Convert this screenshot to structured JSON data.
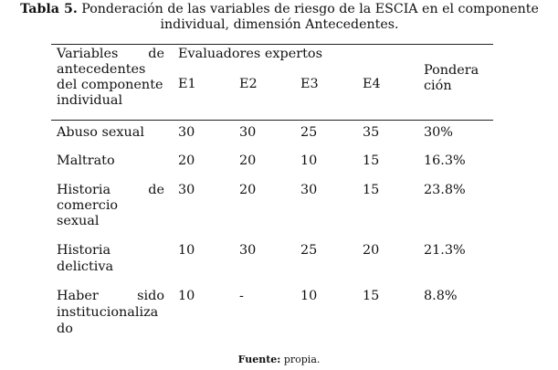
{
  "caption": {
    "label": "Tabla 5.",
    "text_line1": "Ponderación de las variables de riesgo de la ESCIA en el componente",
    "text_line2": "individual, dimensión Antecedentes."
  },
  "table": {
    "header": {
      "variables_lines": [
        "Variables de",
        "antecedentes",
        "del componente",
        "individual"
      ],
      "group_label": "Evaluadores expertos",
      "evaluators": [
        "E1",
        "E2",
        "E3",
        "E4"
      ],
      "ponderacion_lines": [
        "Pondera",
        "ción"
      ]
    },
    "rows": [
      {
        "variable_lines": [
          "Abuso sexual"
        ],
        "e1": "30",
        "e2": "30",
        "e3": "25",
        "e4": "35",
        "ponderacion": "30%"
      },
      {
        "variable_lines": [
          "Maltrato"
        ],
        "e1": "20",
        "e2": "20",
        "e3": "10",
        "e4": "15",
        "ponderacion": "16.3%"
      },
      {
        "variable_lines": [
          "Historia de",
          "comercio",
          "sexual"
        ],
        "e1": "30",
        "e2": "20",
        "e3": "30",
        "e4": "15",
        "ponderacion": "23.8%"
      },
      {
        "variable_lines": [
          "Historia",
          "delictiva"
        ],
        "e1": "10",
        "e2": "30",
        "e3": "25",
        "e4": "20",
        "ponderacion": "21.3%"
      },
      {
        "variable_lines": [
          "Haber sido",
          "institucionaliza",
          "do"
        ],
        "e1": "10",
        "e2": "-",
        "e3": "10",
        "e4": "15",
        "ponderacion": "8.8%"
      }
    ]
  },
  "source": {
    "label": "Fuente:",
    "text": "propia."
  }
}
